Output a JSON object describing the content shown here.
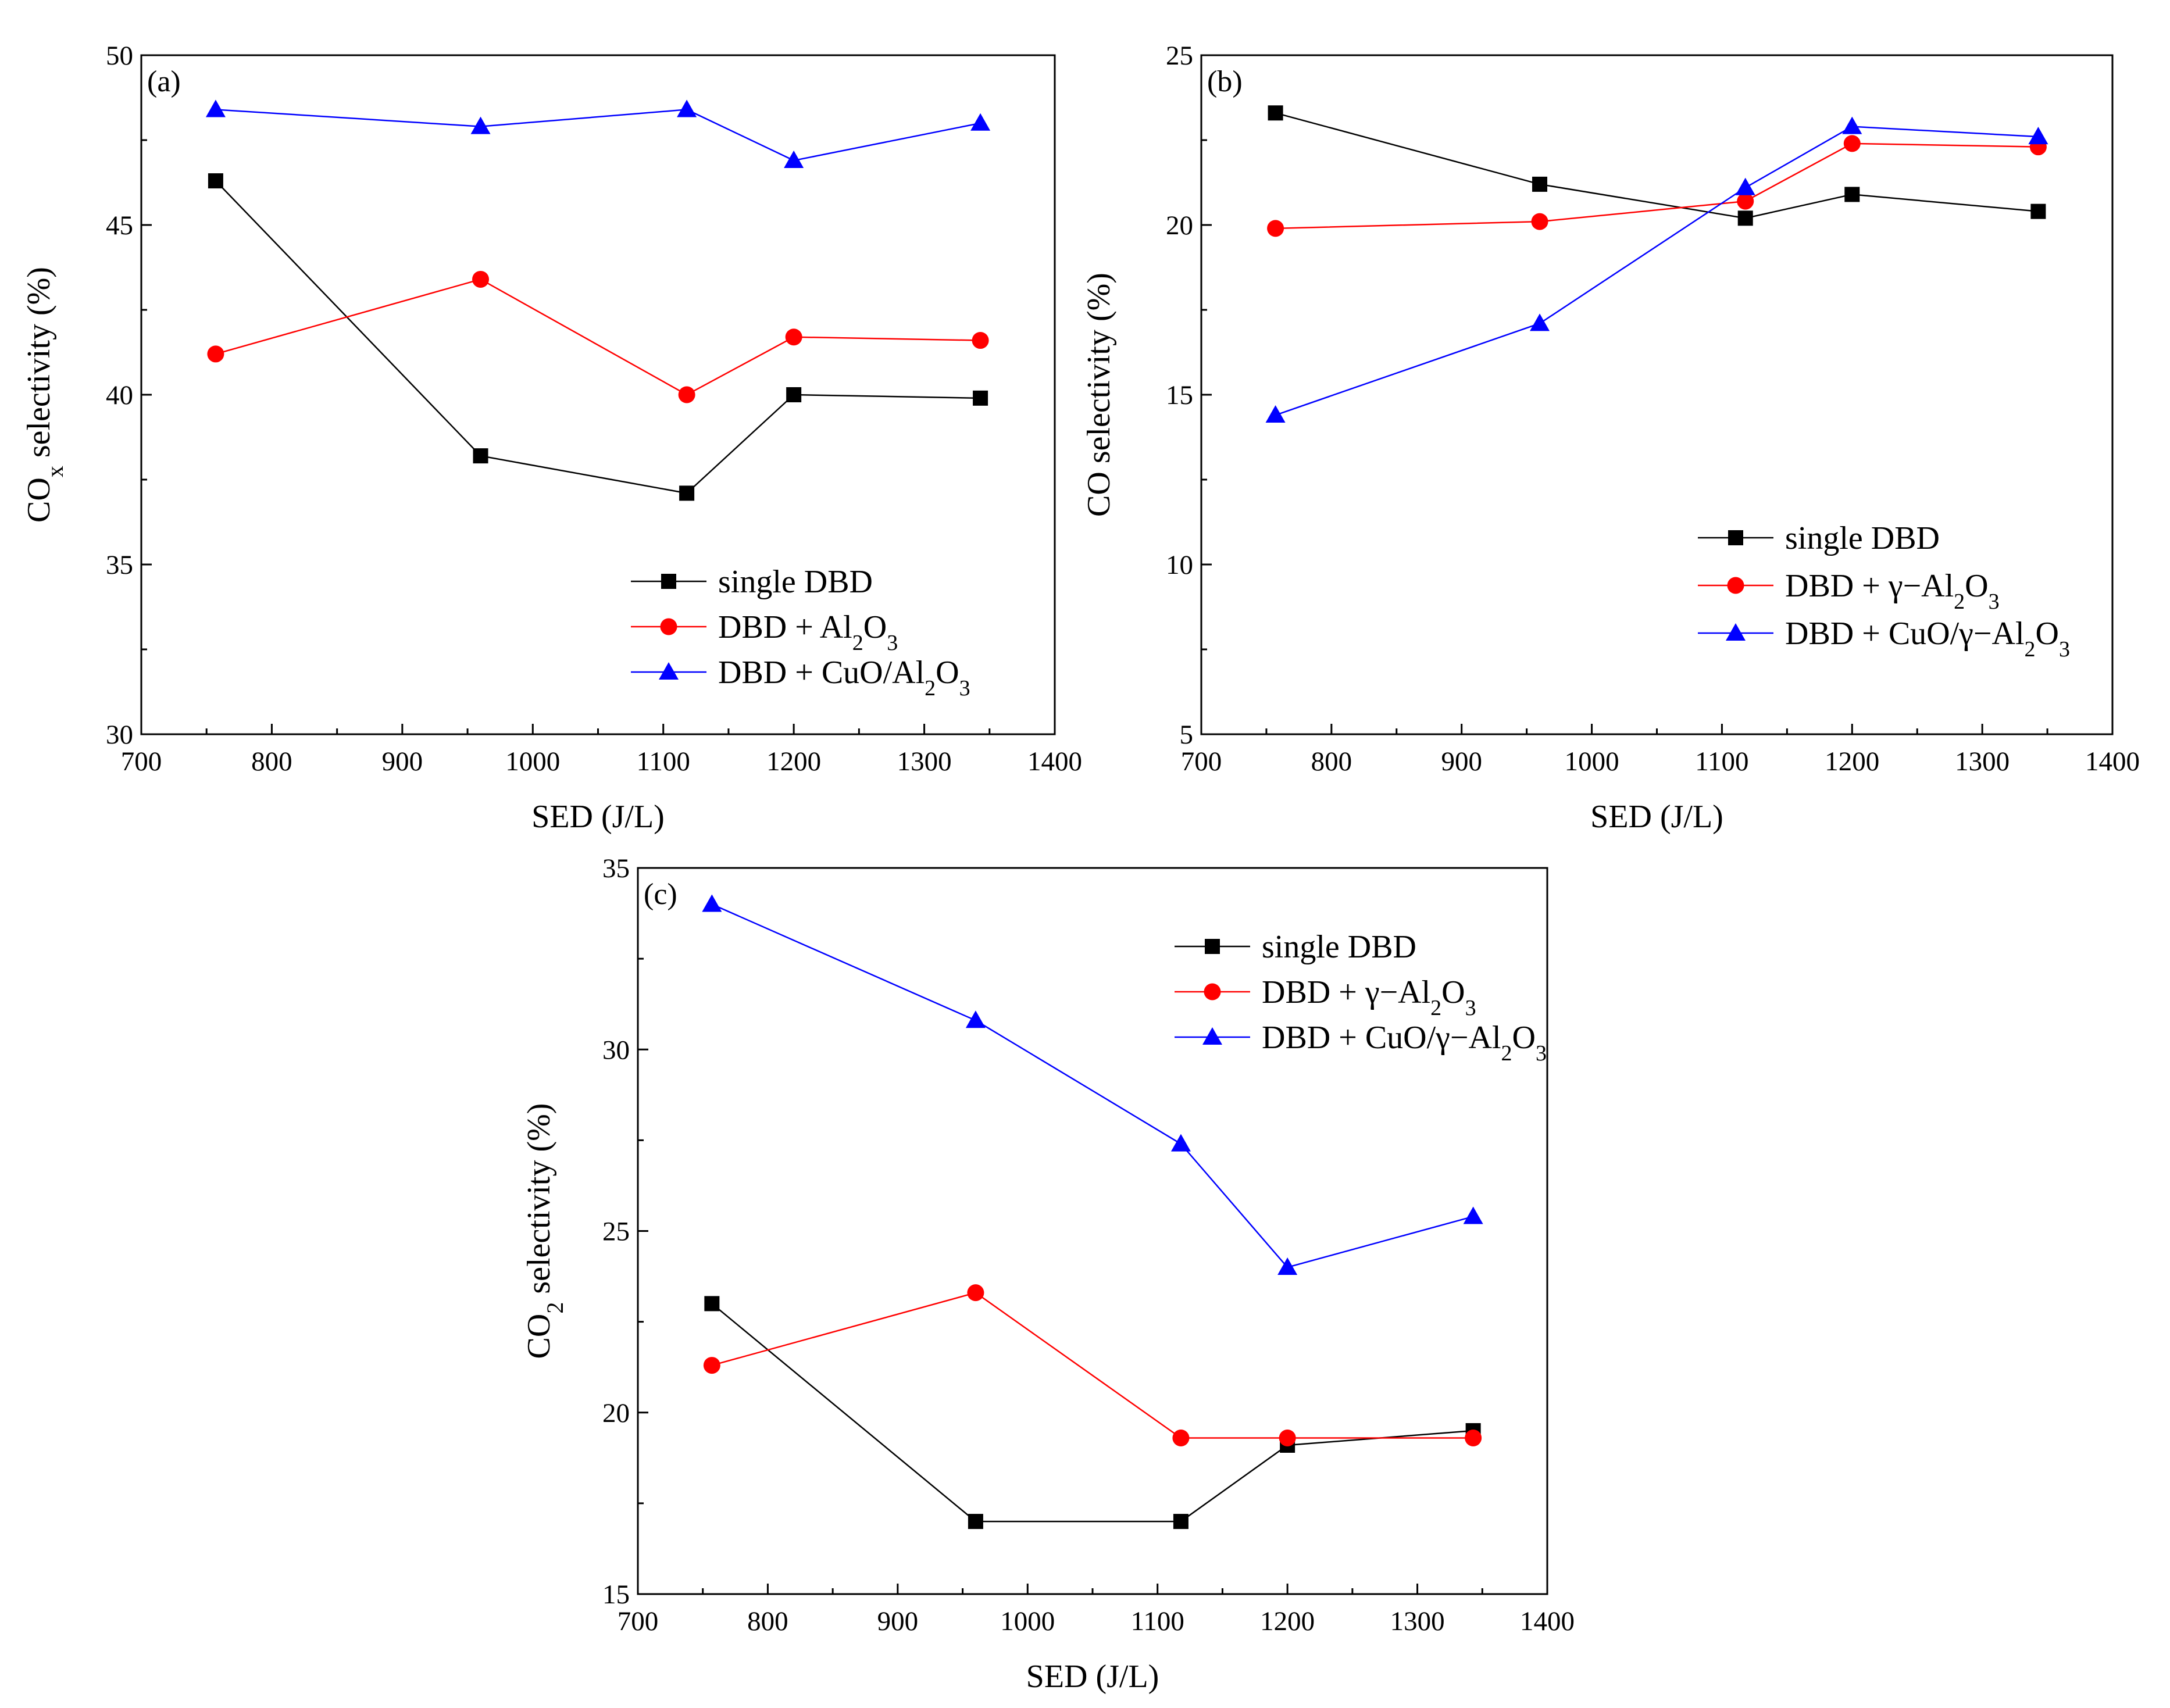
{
  "figure": {
    "colors": {
      "single_dbd": "#000000",
      "alumina": "#ff0000",
      "cuo_alumina": "#0000ff",
      "axis": "#000000"
    }
  },
  "chart_data": [
    {
      "id": "a",
      "type": "line",
      "panel_label": "(a)",
      "xlabel": "SED (J/L)",
      "ylabel": {
        "main": "CO",
        "sub": "x",
        "rest": " selectivity (%)"
      },
      "xlim": [
        700,
        1400
      ],
      "ylim": [
        30,
        50
      ],
      "xticks": [
        700,
        800,
        900,
        1000,
        1100,
        1200,
        1300,
        1400
      ],
      "yticks": [
        30,
        35,
        40,
        45,
        50
      ],
      "x": [
        757,
        960,
        1118,
        1200,
        1343
      ],
      "legend_position": "bottom-right",
      "series": [
        {
          "key": "single_dbd",
          "marker": "square",
          "values": [
            46.3,
            38.2,
            37.1,
            40.0,
            39.9
          ],
          "legend": [
            {
              "t": "single DBD"
            }
          ]
        },
        {
          "key": "alumina",
          "marker": "circle",
          "values": [
            41.2,
            43.4,
            40.0,
            41.7,
            41.6
          ],
          "legend": [
            {
              "t": "DBD + Al"
            },
            {
              "t": "2",
              "sub": true
            },
            {
              "t": "O"
            },
            {
              "t": "3",
              "sub": true
            }
          ]
        },
        {
          "key": "cuo_alumina",
          "marker": "triangle",
          "values": [
            48.4,
            47.9,
            48.4,
            46.9,
            48.0
          ],
          "legend": [
            {
              "t": "DBD + CuO/Al"
            },
            {
              "t": "2",
              "sub": true
            },
            {
              "t": "O"
            },
            {
              "t": "3",
              "sub": true
            }
          ]
        }
      ]
    },
    {
      "id": "b",
      "type": "line",
      "panel_label": "(b)",
      "xlabel": "SED (J/L)",
      "ylabel": {
        "main": "CO selectivity (%)",
        "sub": "",
        "rest": ""
      },
      "xlim": [
        700,
        1400
      ],
      "ylim": [
        5,
        25
      ],
      "xticks": [
        700,
        800,
        900,
        1000,
        1100,
        1200,
        1300,
        1400
      ],
      "yticks": [
        5,
        10,
        15,
        20,
        25
      ],
      "x": [
        757,
        960,
        1118,
        1200,
        1343
      ],
      "legend_position": "bottom-right",
      "series": [
        {
          "key": "single_dbd",
          "marker": "square",
          "values": [
            23.3,
            21.2,
            20.2,
            20.9,
            20.4
          ],
          "legend": [
            {
              "t": "single DBD"
            }
          ]
        },
        {
          "key": "alumina",
          "marker": "circle",
          "values": [
            19.9,
            20.1,
            20.7,
            22.4,
            22.3
          ],
          "legend": [
            {
              "t": "DBD + γ−Al"
            },
            {
              "t": "2",
              "sub": true
            },
            {
              "t": "O"
            },
            {
              "t": "3",
              "sub": true
            }
          ]
        },
        {
          "key": "cuo_alumina",
          "marker": "triangle",
          "values": [
            14.4,
            17.1,
            21.1,
            22.9,
            22.6
          ],
          "legend": [
            {
              "t": "DBD + CuO/γ−Al"
            },
            {
              "t": "2",
              "sub": true
            },
            {
              "t": "O"
            },
            {
              "t": "3",
              "sub": true
            }
          ]
        }
      ]
    },
    {
      "id": "c",
      "type": "line",
      "panel_label": "(c)",
      "xlabel": "SED (J/L)",
      "ylabel": {
        "main": "CO",
        "sub": "2",
        "rest": " selectivity (%)"
      },
      "xlim": [
        700,
        1400
      ],
      "ylim": [
        15,
        35
      ],
      "xticks": [
        700,
        800,
        900,
        1000,
        1100,
        1200,
        1300,
        1400
      ],
      "yticks": [
        15,
        20,
        25,
        30,
        35
      ],
      "x": [
        757,
        960,
        1118,
        1200,
        1343
      ],
      "legend_position": "top-right",
      "series": [
        {
          "key": "single_dbd",
          "marker": "square",
          "values": [
            23.0,
            17.0,
            17.0,
            19.1,
            19.5
          ],
          "legend": [
            {
              "t": "single DBD"
            }
          ]
        },
        {
          "key": "alumina",
          "marker": "circle",
          "values": [
            21.3,
            23.3,
            19.3,
            19.3,
            19.3
          ],
          "legend": [
            {
              "t": "DBD + γ−Al"
            },
            {
              "t": "2",
              "sub": true
            },
            {
              "t": "O"
            },
            {
              "t": "3",
              "sub": true
            }
          ]
        },
        {
          "key": "cuo_alumina",
          "marker": "triangle",
          "values": [
            34.0,
            30.8,
            27.4,
            24.0,
            25.4
          ],
          "legend": [
            {
              "t": "DBD + CuO/γ−Al"
            },
            {
              "t": "2",
              "sub": true
            },
            {
              "t": "O"
            },
            {
              "t": "3",
              "sub": true
            }
          ]
        }
      ]
    }
  ]
}
